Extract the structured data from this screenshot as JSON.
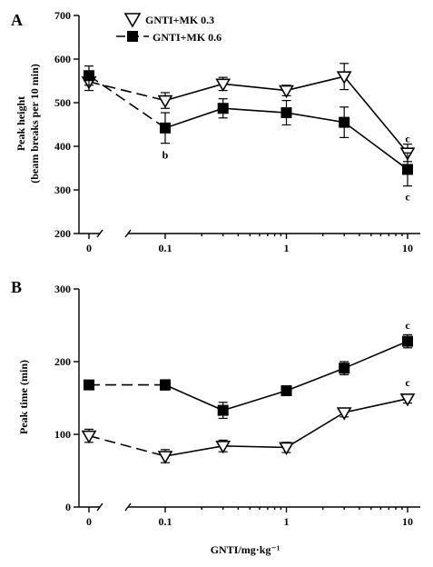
{
  "x_axis_label": "GNTI/mg·kg⁻¹",
  "legend": [
    {
      "label": "GNTI+MK 0.3",
      "marker": "open-triangle-down",
      "color": "#000000"
    },
    {
      "label": "GNTI+MK 0.6",
      "marker": "filled-square",
      "color": "#000000"
    }
  ],
  "chart_data": [
    {
      "type": "line",
      "panel_label": "A",
      "ylabel_line1": "Peak height",
      "ylabel_line2": "(beam breaks per 10 min)",
      "x": [
        "0",
        "0.1",
        "0.3",
        "1",
        "3",
        "10"
      ],
      "x_scale": "log with axis break after 0",
      "x_tick_labels": [
        "0",
        "0.1",
        "1",
        "10"
      ],
      "ylim": [
        200,
        700
      ],
      "y_ticks": [
        "200",
        "300",
        "400",
        "500",
        "600",
        "700"
      ],
      "series": [
        {
          "name": "GNTI+MK 0.3",
          "values": [
            548,
            505,
            543,
            528,
            560,
            385
          ],
          "errors": [
            20,
            18,
            15,
            12,
            30,
            20
          ]
        },
        {
          "name": "GNTI+MK 0.6",
          "values": [
            562,
            442,
            487,
            477,
            455,
            347
          ],
          "errors": [
            22,
            35,
            22,
            28,
            35,
            38
          ]
        }
      ],
      "annotations": [
        {
          "text": "b",
          "x": "0.1",
          "y": 380
        },
        {
          "text": "c",
          "x": "10",
          "y": 418
        },
        {
          "text": "c",
          "x": "10",
          "y": 284
        }
      ]
    },
    {
      "type": "line",
      "panel_label": "B",
      "ylabel": "Peak time (min)",
      "x": [
        "0",
        "0.1",
        "0.3",
        "1",
        "3",
        "10"
      ],
      "x_scale": "log with axis break after 0",
      "x_tick_labels": [
        "0",
        "0.1",
        "1",
        "10"
      ],
      "ylim": [
        0,
        300
      ],
      "y_ticks": [
        "0",
        "100",
        "200",
        "300"
      ],
      "series": [
        {
          "name": "GNTI+MK 0.3",
          "values": [
            98,
            70,
            84,
            82,
            130,
            149
          ],
          "errors": [
            9,
            9,
            8,
            7,
            6,
            6
          ]
        },
        {
          "name": "GNTI+MK 0.6",
          "values": [
            168,
            168,
            133,
            160,
            191,
            228
          ],
          "errors": [
            6,
            7,
            11,
            6,
            9,
            9
          ]
        }
      ],
      "annotations": [
        {
          "text": "c",
          "x": "10",
          "y": 250
        },
        {
          "text": "c",
          "x": "10",
          "y": 171
        }
      ]
    }
  ]
}
